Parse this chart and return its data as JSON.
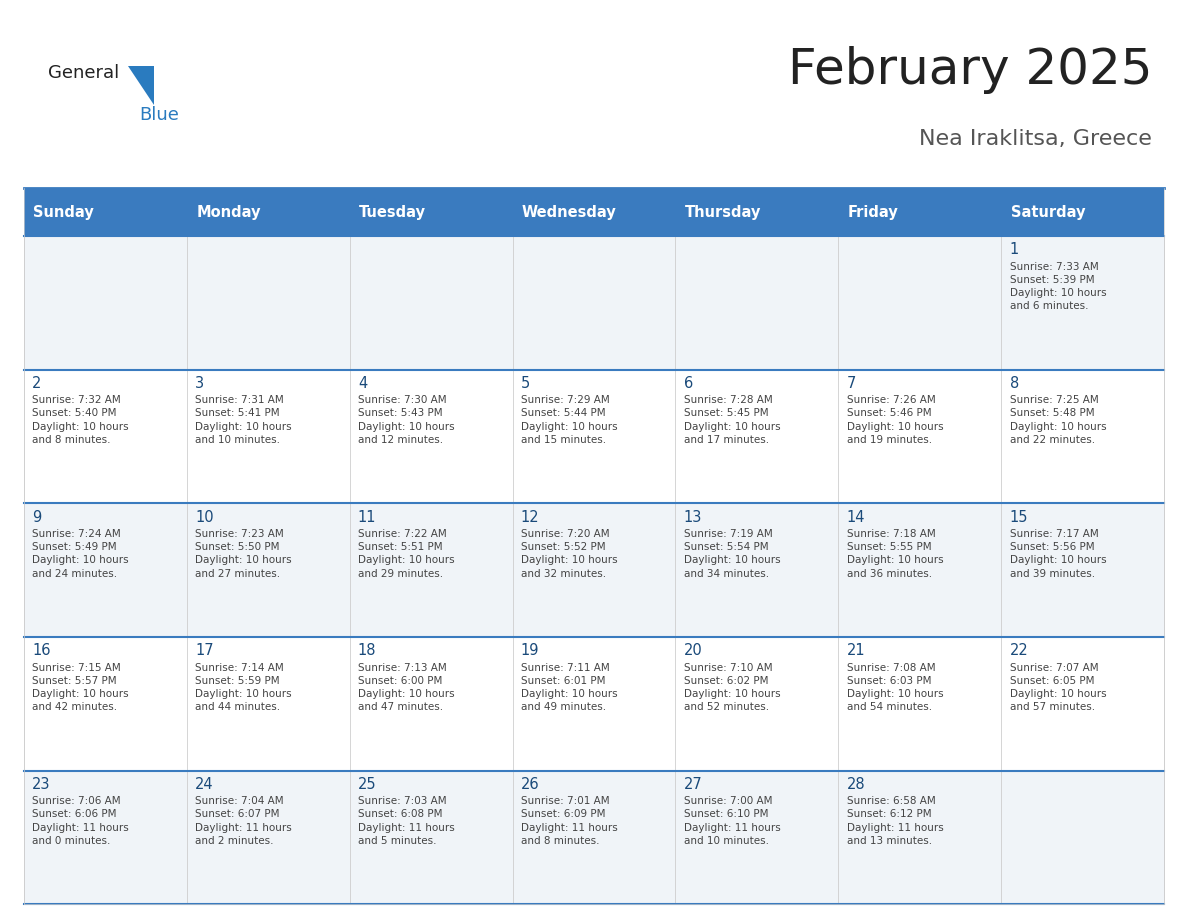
{
  "title": "February 2025",
  "subtitle": "Nea Iraklitsa, Greece",
  "days_of_week": [
    "Sunday",
    "Monday",
    "Tuesday",
    "Wednesday",
    "Thursday",
    "Friday",
    "Saturday"
  ],
  "header_bg": "#3a7bbf",
  "header_text": "#ffffff",
  "row_bg_even": "#f0f4f8",
  "row_bg_odd": "#ffffff",
  "cell_border": "#cccccc",
  "day_number_color": "#1a4a7a",
  "text_color": "#444444",
  "title_color": "#222222",
  "subtitle_color": "#555555",
  "logo_text_color": "#222222",
  "logo_blue_color": "#2a7bbf",
  "calendar": [
    [
      null,
      null,
      null,
      null,
      null,
      null,
      {
        "day": 1,
        "sunrise": "7:33 AM",
        "sunset": "5:39 PM",
        "daylight": "10 hours\nand 6 minutes."
      }
    ],
    [
      {
        "day": 2,
        "sunrise": "7:32 AM",
        "sunset": "5:40 PM",
        "daylight": "10 hours\nand 8 minutes."
      },
      {
        "day": 3,
        "sunrise": "7:31 AM",
        "sunset": "5:41 PM",
        "daylight": "10 hours\nand 10 minutes."
      },
      {
        "day": 4,
        "sunrise": "7:30 AM",
        "sunset": "5:43 PM",
        "daylight": "10 hours\nand 12 minutes."
      },
      {
        "day": 5,
        "sunrise": "7:29 AM",
        "sunset": "5:44 PM",
        "daylight": "10 hours\nand 15 minutes."
      },
      {
        "day": 6,
        "sunrise": "7:28 AM",
        "sunset": "5:45 PM",
        "daylight": "10 hours\nand 17 minutes."
      },
      {
        "day": 7,
        "sunrise": "7:26 AM",
        "sunset": "5:46 PM",
        "daylight": "10 hours\nand 19 minutes."
      },
      {
        "day": 8,
        "sunrise": "7:25 AM",
        "sunset": "5:48 PM",
        "daylight": "10 hours\nand 22 minutes."
      }
    ],
    [
      {
        "day": 9,
        "sunrise": "7:24 AM",
        "sunset": "5:49 PM",
        "daylight": "10 hours\nand 24 minutes."
      },
      {
        "day": 10,
        "sunrise": "7:23 AM",
        "sunset": "5:50 PM",
        "daylight": "10 hours\nand 27 minutes."
      },
      {
        "day": 11,
        "sunrise": "7:22 AM",
        "sunset": "5:51 PM",
        "daylight": "10 hours\nand 29 minutes."
      },
      {
        "day": 12,
        "sunrise": "7:20 AM",
        "sunset": "5:52 PM",
        "daylight": "10 hours\nand 32 minutes."
      },
      {
        "day": 13,
        "sunrise": "7:19 AM",
        "sunset": "5:54 PM",
        "daylight": "10 hours\nand 34 minutes."
      },
      {
        "day": 14,
        "sunrise": "7:18 AM",
        "sunset": "5:55 PM",
        "daylight": "10 hours\nand 36 minutes."
      },
      {
        "day": 15,
        "sunrise": "7:17 AM",
        "sunset": "5:56 PM",
        "daylight": "10 hours\nand 39 minutes."
      }
    ],
    [
      {
        "day": 16,
        "sunrise": "7:15 AM",
        "sunset": "5:57 PM",
        "daylight": "10 hours\nand 42 minutes."
      },
      {
        "day": 17,
        "sunrise": "7:14 AM",
        "sunset": "5:59 PM",
        "daylight": "10 hours\nand 44 minutes."
      },
      {
        "day": 18,
        "sunrise": "7:13 AM",
        "sunset": "6:00 PM",
        "daylight": "10 hours\nand 47 minutes."
      },
      {
        "day": 19,
        "sunrise": "7:11 AM",
        "sunset": "6:01 PM",
        "daylight": "10 hours\nand 49 minutes."
      },
      {
        "day": 20,
        "sunrise": "7:10 AM",
        "sunset": "6:02 PM",
        "daylight": "10 hours\nand 52 minutes."
      },
      {
        "day": 21,
        "sunrise": "7:08 AM",
        "sunset": "6:03 PM",
        "daylight": "10 hours\nand 54 minutes."
      },
      {
        "day": 22,
        "sunrise": "7:07 AM",
        "sunset": "6:05 PM",
        "daylight": "10 hours\nand 57 minutes."
      }
    ],
    [
      {
        "day": 23,
        "sunrise": "7:06 AM",
        "sunset": "6:06 PM",
        "daylight": "11 hours\nand 0 minutes."
      },
      {
        "day": 24,
        "sunrise": "7:04 AM",
        "sunset": "6:07 PM",
        "daylight": "11 hours\nand 2 minutes."
      },
      {
        "day": 25,
        "sunrise": "7:03 AM",
        "sunset": "6:08 PM",
        "daylight": "11 hours\nand 5 minutes."
      },
      {
        "day": 26,
        "sunrise": "7:01 AM",
        "sunset": "6:09 PM",
        "daylight": "11 hours\nand 8 minutes."
      },
      {
        "day": 27,
        "sunrise": "7:00 AM",
        "sunset": "6:10 PM",
        "daylight": "11 hours\nand 10 minutes."
      },
      {
        "day": 28,
        "sunrise": "6:58 AM",
        "sunset": "6:12 PM",
        "daylight": "11 hours\nand 13 minutes."
      },
      null
    ]
  ]
}
